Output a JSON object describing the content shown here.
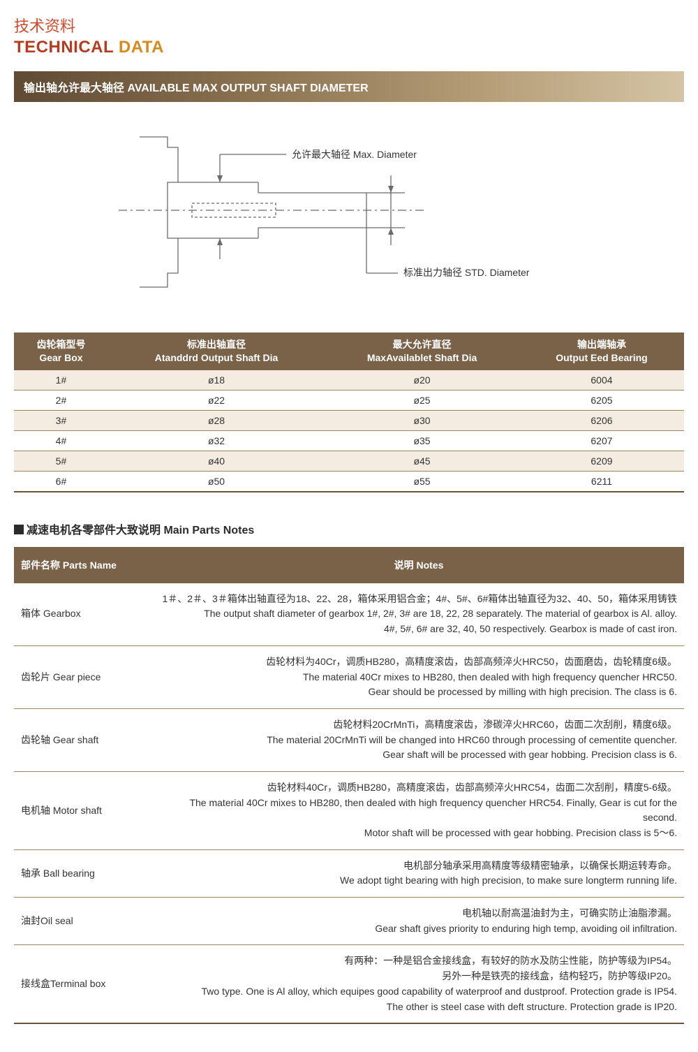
{
  "titles": {
    "cn": "技术资料",
    "en1": "TECHNICAL",
    "en2": "DATA"
  },
  "section_bar": "输出轴允许最大轴径 AVAILABLE MAX OUTPUT SHAFT DIAMETER",
  "diagram": {
    "max_label": "允许最大轴径 Max. Diameter",
    "std_label": "标准出力轴径 STD. Diameter",
    "stroke": "#6b6b6b",
    "stroke_width": 1.3
  },
  "shaft_table": {
    "headers": [
      {
        "cn": "齿轮箱型号",
        "en": "Gear Box"
      },
      {
        "cn": "标准出轴直径",
        "en": "Atanddrd Output Shaft Dia"
      },
      {
        "cn": "最大允许直径",
        "en": "MaxAvailablet Shaft Dia"
      },
      {
        "cn": "输出端轴承",
        "en": "Output Eed Bearing"
      }
    ],
    "rows": [
      [
        "1#",
        "ø18",
        "ø20",
        "6004"
      ],
      [
        "2#",
        "ø22",
        "ø25",
        "6205"
      ],
      [
        "3#",
        "ø28",
        "ø30",
        "6206"
      ],
      [
        "4#",
        "ø32",
        "ø35",
        "6207"
      ],
      [
        "5#",
        "ø40",
        "ø45",
        "6209"
      ],
      [
        "6#",
        "ø50",
        "ø55",
        "6211"
      ]
    ],
    "row_bg_odd": "#f4ece0",
    "row_bg_even": "#ffffff"
  },
  "subheading": "减速电机各零部件大致说明  Main Parts Notes",
  "notes_table": {
    "header_parts": "部件名称 Parts Name",
    "header_notes": "说明 Notes",
    "rows": [
      {
        "part": "箱体 Gearbox",
        "lines": [
          "1＃、2＃、3＃箱体出轴直径为18、22、28，箱体采用铝合金；4#、5#、6#箱体出轴直径为32、40、50，箱体采用铸铁",
          "The output shaft diameter of gearbox 1#, 2#, 3# are 18, 22, 28 separately. The material of gearbox is Al. alloy.",
          "4#, 5#, 6# are 32, 40, 50 respectively. Gearbox is made of cast iron."
        ]
      },
      {
        "part": "齿轮片 Gear piece",
        "lines": [
          "齿轮材料为40Cr，调质HB280，高精度滚齿，齿部高频淬火HRC50，齿面磨齿，齿轮精度6级。",
          "The material 40Cr mixes to HB280, then dealed with high frequency quencher HRC50.",
          "Gear should be processed by milling with high precision. The class is 6."
        ]
      },
      {
        "part": "齿轮轴 Gear shaft",
        "lines": [
          "齿轮材料20CrMnTi，高精度滚齿，渗碳淬火HRC60，齿面二次刮削，精度6级。",
          "The material 20CrMnTi will be changed into HRC60 through processing of cementite quencher.",
          "Gear shaft will be processed with gear hobbing. Precision class is 6."
        ]
      },
      {
        "part": "电机轴 Motor shaft",
        "lines": [
          "齿轮材料40Cr，调质HB280，高精度滚齿，齿部高频淬火HRC54，齿面二次刮削，精度5-6级。",
          "The material 40Cr mixes to HB280, then dealed with high frequency quencher HRC54. Finally, Gear is cut for the second.",
          "Motor shaft will be processed with gear hobbing. Precision class is 5～6."
        ]
      },
      {
        "part": "轴承 Ball bearing",
        "lines": [
          "电机部分轴承采用高精度等级精密轴承，以确保长期运转寿命。",
          "We adopt tight bearing with high precision, to make sure longterm running life."
        ]
      },
      {
        "part": "油封Oil seal",
        "lines": [
          "电机轴以耐高温油封为主，可确实防止油脂渗漏。",
          "Gear shaft gives priority to enduring high temp, avoiding oil infiltration."
        ]
      },
      {
        "part": "接线盒Terminal box",
        "lines": [
          "有两种：一种是铝合金接线盒，有较好的防水及防尘性能，防护等级为IP54。",
          "另外一种是铁壳的接线盒，结构轻巧，防护等级IP20。",
          "Two type. One is Al alloy, which equipes good capability of waterproof and dustproof. Protection grade is IP54.",
          "The other is steel case with deft structure.  Protection grade is IP20."
        ]
      }
    ]
  },
  "colors": {
    "header_bg": "#7a6248",
    "border": "#9a8567",
    "title_red": "#b83a1f",
    "title_orange": "#d8891a",
    "title_cn": "#d14a2b"
  }
}
